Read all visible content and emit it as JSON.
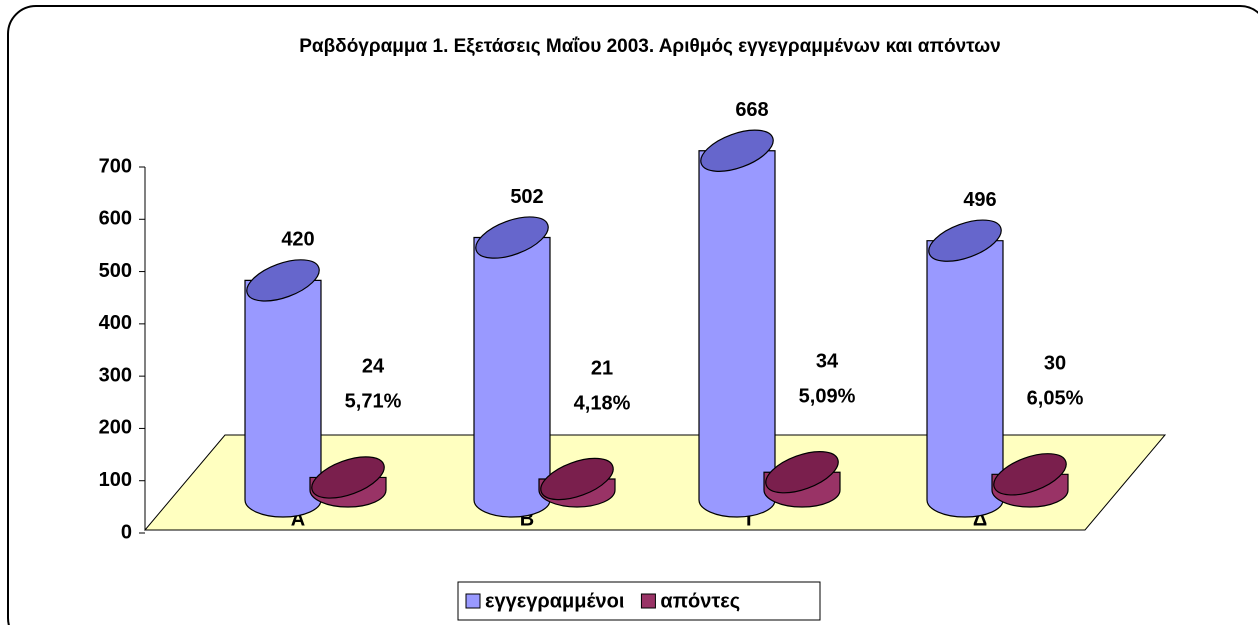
{
  "chart_data": {
    "type": "bar3d",
    "title": "Ραβδόγραμμα 1. Εξετάσεις Μαΐου 2003. Αριθμός εγγεγραμμένων και απόντων",
    "categories": [
      "Α",
      "Β",
      "Γ",
      "Δ"
    ],
    "series": [
      {
        "name": "εγγεγραμμένοι",
        "color": "#9999ff",
        "values": [
          420,
          502,
          668,
          496
        ]
      },
      {
        "name": "απόντες",
        "color": "#993366",
        "values": [
          24,
          21,
          34,
          30
        ]
      }
    ],
    "annotations": [
      "5,71%",
      "4,18%",
      "5,09%",
      "6,05%"
    ],
    "ylim": [
      0,
      700
    ],
    "yticks": [
      0,
      100,
      200,
      300,
      400,
      500,
      600,
      700
    ],
    "legend": "bottom"
  }
}
